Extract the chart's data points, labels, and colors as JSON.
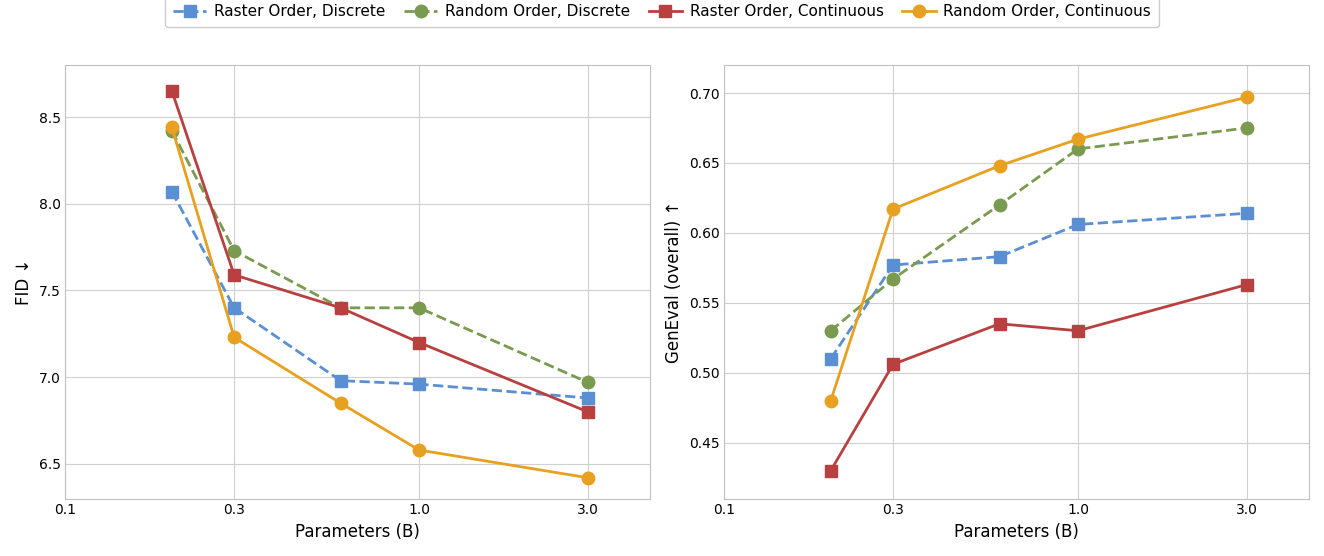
{
  "x_params": [
    0.2,
    0.3,
    0.6,
    1.0,
    3.0
  ],
  "fid": {
    "raster_discrete": [
      8.07,
      7.4,
      6.98,
      6.96,
      6.88
    ],
    "random_discrete": [
      8.42,
      7.73,
      7.4,
      7.4,
      6.97
    ],
    "raster_continuous": [
      8.65,
      7.59,
      7.4,
      7.2,
      6.8
    ],
    "random_continuous": [
      8.44,
      7.23,
      6.85,
      6.58,
      6.42
    ]
  },
  "geneval": {
    "raster_discrete": [
      0.51,
      0.577,
      0.583,
      0.606,
      0.614
    ],
    "random_discrete": [
      0.53,
      0.567,
      0.62,
      0.66,
      0.675
    ],
    "raster_continuous": [
      0.43,
      0.506,
      0.535,
      0.53,
      0.563
    ],
    "random_continuous": [
      0.48,
      0.617,
      0.648,
      0.667,
      0.697
    ]
  },
  "colors": {
    "raster_discrete": "#5B8FD4",
    "random_discrete": "#7A9A50",
    "raster_continuous": "#B94040",
    "random_continuous": "#E8A020"
  },
  "labels": {
    "raster_discrete": "Raster Order, Discrete",
    "random_discrete": "Random Order, Discrete",
    "raster_continuous": "Raster Order, Continuous",
    "random_continuous": "Random Order, Continuous"
  },
  "fid_ylim": [
    6.3,
    8.8
  ],
  "geneval_ylim": [
    0.41,
    0.72
  ],
  "fid_yticks": [
    6.5,
    7.0,
    7.5,
    8.0,
    8.5
  ],
  "geneval_yticks": [
    0.45,
    0.5,
    0.55,
    0.6,
    0.65,
    0.7
  ],
  "xlabel": "Parameters (B)",
  "fid_ylabel": "FID ↓",
  "geneval_ylabel": "GenEval (overall) ↑",
  "xtick_labels": [
    "0.1",
    "0.3",
    "1.0",
    "3.0"
  ],
  "xtick_positions": [
    0.1,
    0.3,
    1.0,
    3.0
  ]
}
